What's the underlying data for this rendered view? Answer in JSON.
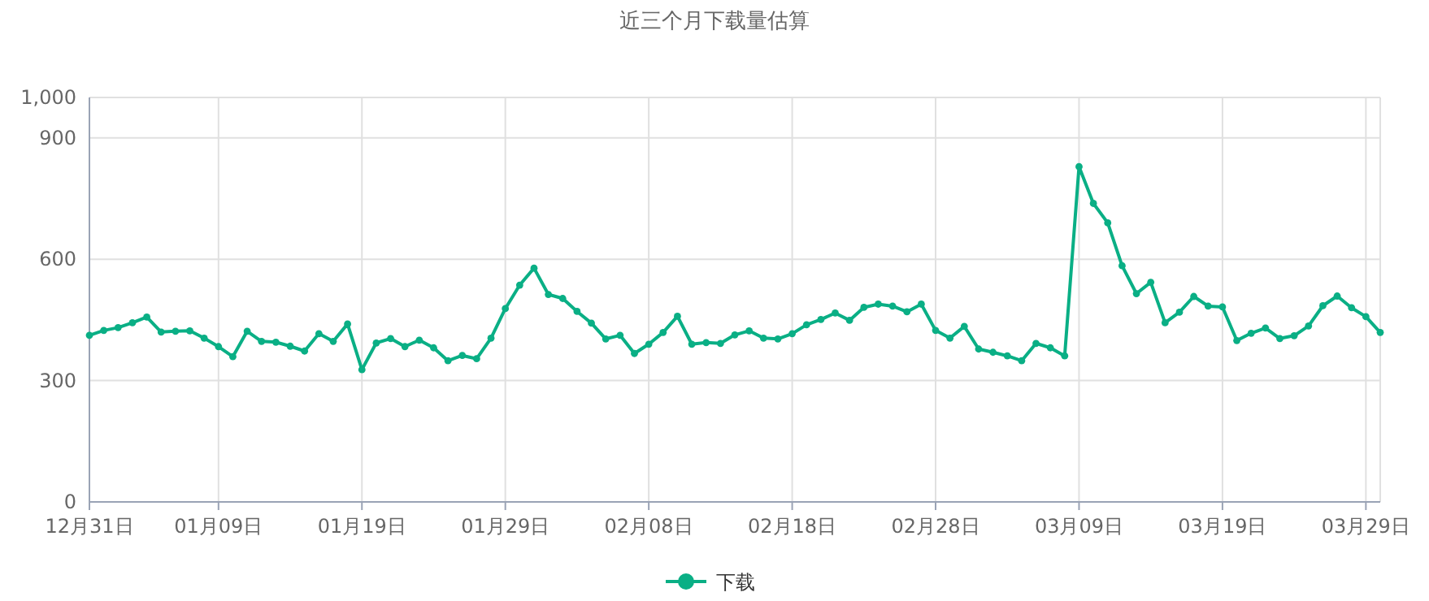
{
  "chart_data": {
    "type": "line",
    "title": "近三个月下载量估算",
    "categories": [
      "12月31日",
      null,
      null,
      null,
      null,
      null,
      null,
      null,
      null,
      "01月09日",
      null,
      null,
      null,
      null,
      null,
      null,
      null,
      null,
      null,
      "01月19日",
      null,
      null,
      null,
      null,
      null,
      null,
      null,
      null,
      null,
      "01月29日",
      null,
      null,
      null,
      null,
      null,
      null,
      null,
      null,
      null,
      "02月08日",
      null,
      null,
      null,
      null,
      null,
      null,
      null,
      null,
      null,
      "02月18日",
      null,
      null,
      null,
      null,
      null,
      null,
      null,
      null,
      null,
      "02月28日",
      null,
      null,
      null,
      null,
      null,
      null,
      null,
      null,
      null,
      "03月09日",
      null,
      null,
      null,
      null,
      null,
      null,
      null,
      null,
      null,
      "03月19日",
      null,
      null,
      null,
      null,
      null,
      null,
      null,
      null,
      null,
      "03月29日",
      null
    ],
    "series": [
      {
        "name": "下载",
        "color": "#0aaf85",
        "values": [
          412,
          424,
          431,
          443,
          457,
          420,
          422,
          423,
          405,
          384,
          359,
          422,
          397,
          395,
          385,
          373,
          416,
          397,
          440,
          327,
          393,
          404,
          384,
          400,
          381,
          349,
          362,
          354,
          405,
          478,
          536,
          578,
          513,
          503,
          471,
          442,
          403,
          412,
          367,
          390,
          419,
          459,
          390,
          394,
          392,
          413,
          423,
          405,
          403,
          416,
          438,
          451,
          467,
          449,
          481,
          489,
          484,
          470,
          489,
          424,
          405,
          434,
          378,
          370,
          361,
          349,
          392,
          381,
          361,
          829,
          738,
          690,
          584,
          515,
          543,
          443,
          469,
          508,
          484,
          482,
          399,
          417,
          430,
          404,
          411,
          435,
          485,
          509,
          480,
          458,
          419
        ]
      }
    ],
    "ylim": [
      0,
      1000
    ],
    "yticks": [
      {
        "value": 0,
        "label": "0"
      },
      {
        "value": 300,
        "label": "300"
      },
      {
        "value": 600,
        "label": "600"
      },
      {
        "value": 900,
        "label": "900"
      },
      {
        "value": 1000,
        "label": "1,000"
      }
    ],
    "grid": true,
    "legend": "bottom",
    "marker": "circle",
    "line_style": "solid"
  }
}
